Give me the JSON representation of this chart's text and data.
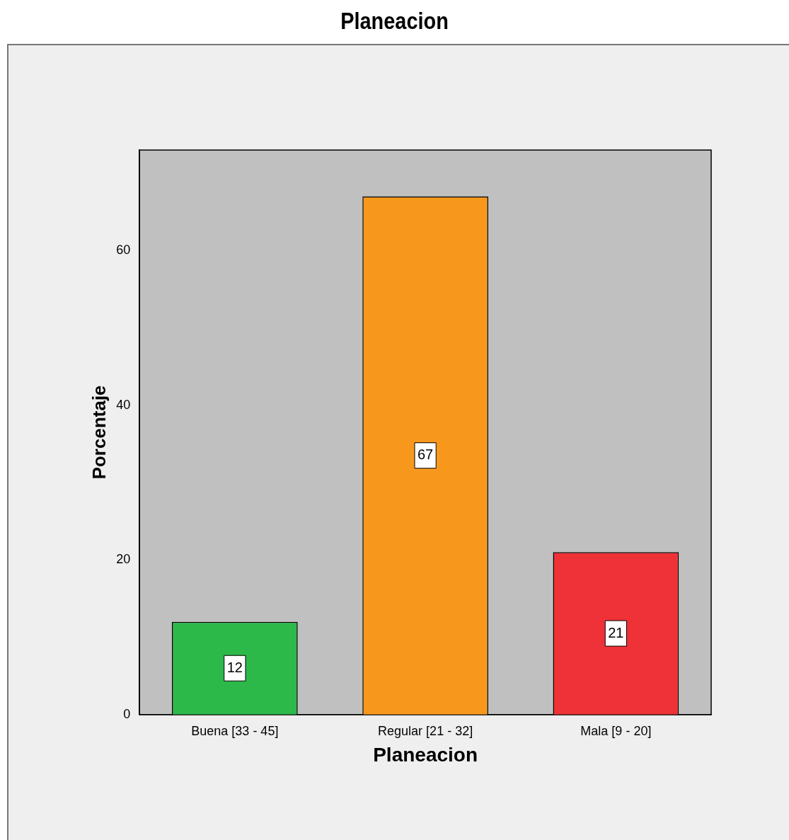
{
  "chart_data": {
    "type": "bar",
    "title": "Planeacion",
    "xlabel": "Planeacion",
    "ylabel": "Porcentaje",
    "categories": [
      "Buena [33 - 45]",
      "Regular [21 - 32]",
      "Mala [9 - 20]"
    ],
    "values": [
      12,
      67,
      21
    ],
    "colors": [
      "#2db84a",
      "#f7981d",
      "#ef3237"
    ],
    "ylim": [
      0,
      73
    ],
    "yticks": [
      0,
      20,
      40,
      60
    ],
    "grid": false,
    "legend": false,
    "data_labels": true
  }
}
